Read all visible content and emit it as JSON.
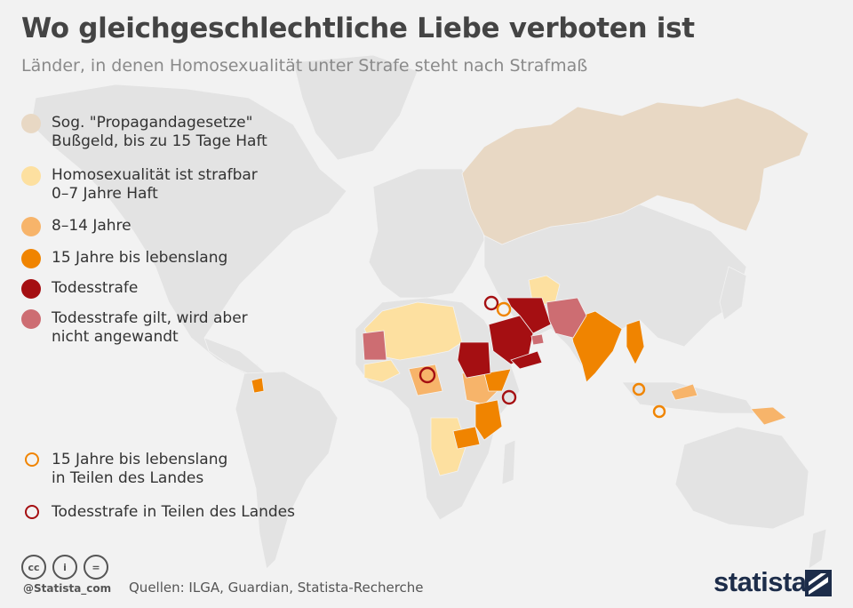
{
  "header": {
    "title": "Wo gleichgeschlechtliche Liebe verboten ist",
    "subtitle": "Länder, in denen Homosexualität unter Strafe steht nach Strafmaß"
  },
  "legend": {
    "fill_items": [
      {
        "line1": "Sog. \"Propagandagesetze\"",
        "line2": "Bußgeld, bis zu 15 Tage Haft",
        "color": "#e8d8c4"
      },
      {
        "line1": "Homosexualität ist strafbar",
        "line2": "0–7 Jahre Haft",
        "color": "#fde0a0"
      },
      {
        "line1": "8–14 Jahre",
        "line2": "",
        "color": "#f7b46a"
      },
      {
        "line1": "15 Jahre bis lebenslang",
        "line2": "",
        "color": "#f08400"
      },
      {
        "line1": "Todesstrafe",
        "line2": "",
        "color": "#a50f12"
      },
      {
        "line1": "Todesstrafe gilt, wird aber",
        "line2": "nicht angewandt",
        "color": "#cd6d72"
      }
    ],
    "ring_items": [
      {
        "line1": "15 Jahre bis lebenslang",
        "line2": "in Teilen des Landes",
        "color": "#f08400"
      },
      {
        "line1": "Todesstrafe in Teilen des Landes",
        "line2": "",
        "color": "#a50f12"
      }
    ]
  },
  "map": {
    "land_color": "#e3e3e3",
    "ocean_color": "#f2f2f2",
    "regions": [
      {
        "name": "Russland",
        "category": "propaganda"
      },
      {
        "name": "Mauretanien",
        "category": "death_not_applied"
      },
      {
        "name": "Sudan",
        "category": "death"
      },
      {
        "name": "Saudi-Arabien",
        "category": "death"
      },
      {
        "name": "Jemen",
        "category": "death"
      },
      {
        "name": "Iran",
        "category": "death"
      },
      {
        "name": "Afghanistan",
        "category": "death_not_applied"
      },
      {
        "name": "Pakistan",
        "category": "death_not_applied"
      },
      {
        "name": "Indien",
        "category": "life"
      },
      {
        "name": "Myanmar",
        "category": "life"
      },
      {
        "name": "Tansania",
        "category": "life"
      },
      {
        "name": "Uganda",
        "category": "life"
      },
      {
        "name": "Sambia",
        "category": "life"
      },
      {
        "name": "Guyana",
        "category": "life"
      },
      {
        "name": "Nordafrika",
        "category": "jail_0_7"
      },
      {
        "name": "Turkmenistan / Usbekistan",
        "category": "jail_0_7"
      },
      {
        "name": "Angola / Namibia / Botswana",
        "category": "jail_0_7"
      },
      {
        "name": "Kenia / Äthiopien",
        "category": "jail_8_14"
      },
      {
        "name": "Papua-Neuguinea",
        "category": "jail_8_14"
      },
      {
        "name": "Malaysia",
        "category": "jail_8_14"
      }
    ],
    "markers": [
      {
        "name": "Nigeria",
        "type": "death_partial"
      },
      {
        "name": "Irak",
        "type": "death_partial"
      },
      {
        "name": "Syrien",
        "type": "life_partial"
      },
      {
        "name": "Somalia",
        "type": "death_partial"
      },
      {
        "name": "Sumatra",
        "type": "life_partial"
      },
      {
        "name": "Java",
        "type": "life_partial"
      }
    ]
  },
  "footer": {
    "cc_labels": [
      "cc",
      "i",
      "="
    ],
    "handle": "@Statista_com",
    "sources": "Quellen: ILGA, Guardian, Statista-Recherche",
    "brand": "statista"
  }
}
